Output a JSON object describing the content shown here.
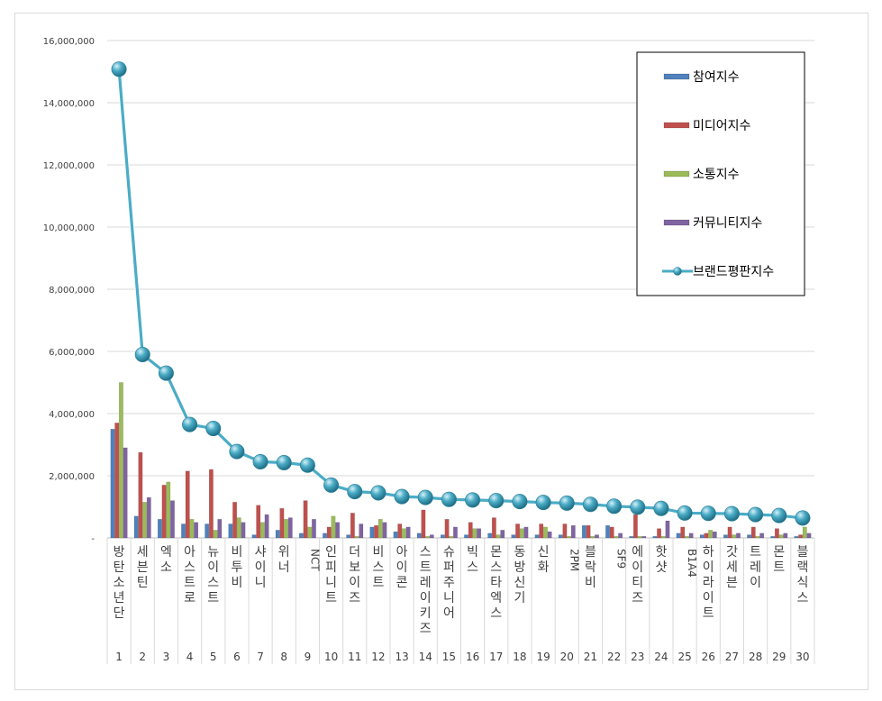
{
  "chart_data": {
    "type": "bar",
    "categories": [
      "방탄소년단",
      "세븐틴",
      "엑소",
      "아스트로",
      "뉴이스트",
      "비투비",
      "샤이니",
      "위너",
      "NCT",
      "인피니트",
      "더보이즈",
      "비스트",
      "아이콘",
      "스트레이키즈",
      "슈퍼주니어",
      "빅스",
      "몬스타엑스",
      "동방신기",
      "신화",
      "2PM",
      "블락비",
      "SF9",
      "에이티즈",
      "핫샷",
      "B1A4",
      "하이라이트",
      "갓세븐",
      "트레이",
      "몬트",
      "블랙식스"
    ],
    "ranks": [
      "1",
      "2",
      "3",
      "4",
      "5",
      "6",
      "7",
      "8",
      "9",
      "10",
      "11",
      "12",
      "13",
      "14",
      "15",
      "16",
      "17",
      "18",
      "19",
      "20",
      "21",
      "22",
      "23",
      "24",
      "25",
      "26",
      "27",
      "28",
      "29",
      "30"
    ],
    "ylim": [
      0,
      16000000
    ],
    "yticks": [
      0,
      2000000,
      4000000,
      6000000,
      8000000,
      10000000,
      12000000,
      14000000,
      16000000
    ],
    "ytick_labels": [
      "-",
      "2,000,000",
      "4,000,000",
      "6,000,000",
      "8,000,000",
      "10,000,000",
      "12,000,000",
      "14,000,000",
      "16,000,000"
    ],
    "grid": true,
    "legend_position": "top-right",
    "series": [
      {
        "name": "참여지수",
        "kind": "bar",
        "color": "#4f81bd",
        "values": [
          3500000,
          700000,
          600000,
          450000,
          450000,
          450000,
          100000,
          250000,
          150000,
          150000,
          100000,
          350000,
          200000,
          150000,
          100000,
          100000,
          150000,
          100000,
          100000,
          100000,
          400000,
          400000,
          50000,
          50000,
          150000,
          100000,
          100000,
          100000,
          50000,
          50000
        ]
      },
      {
        "name": "미디어지수",
        "kind": "bar",
        "color": "#c0504d",
        "values": [
          3700000,
          2750000,
          1700000,
          2150000,
          2200000,
          1150000,
          1050000,
          950000,
          1200000,
          350000,
          800000,
          400000,
          450000,
          900000,
          600000,
          500000,
          650000,
          450000,
          450000,
          450000,
          400000,
          350000,
          750000,
          300000,
          350000,
          150000,
          350000,
          350000,
          300000,
          100000
        ]
      },
      {
        "name": "소통지수",
        "kind": "bar",
        "color": "#9bbb59",
        "values": [
          5000000,
          1150000,
          1800000,
          600000,
          250000,
          650000,
          500000,
          600000,
          350000,
          700000,
          50000,
          600000,
          300000,
          50000,
          50000,
          300000,
          100000,
          300000,
          350000,
          50000,
          50000,
          50000,
          50000,
          50000,
          50000,
          250000,
          100000,
          50000,
          100000,
          350000
        ]
      },
      {
        "name": "커뮤니티지수",
        "kind": "bar",
        "color": "#8064a2",
        "values": [
          2900000,
          1300000,
          1200000,
          500000,
          600000,
          500000,
          750000,
          650000,
          600000,
          500000,
          450000,
          500000,
          350000,
          100000,
          350000,
          300000,
          250000,
          350000,
          200000,
          400000,
          100000,
          150000,
          50000,
          550000,
          150000,
          200000,
          150000,
          150000,
          150000,
          150000
        ]
      },
      {
        "name": "브랜드평판지수",
        "kind": "line",
        "color": "#4bacc6",
        "values": [
          15080000,
          5900000,
          5300000,
          3650000,
          3520000,
          2780000,
          2450000,
          2420000,
          2340000,
          1700000,
          1490000,
          1450000,
          1330000,
          1300000,
          1240000,
          1220000,
          1200000,
          1170000,
          1140000,
          1120000,
          1080000,
          1020000,
          990000,
          950000,
          800000,
          790000,
          780000,
          750000,
          720000,
          640000
        ]
      }
    ]
  }
}
